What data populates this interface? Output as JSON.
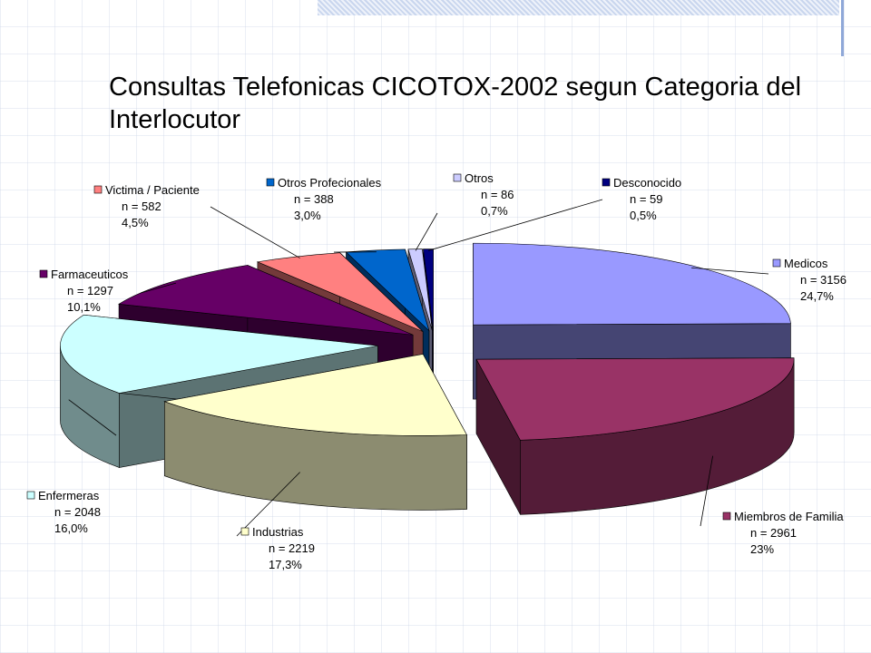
{
  "chart_data": {
    "type": "pie",
    "title": "Consultas Telefonicas CICOTOX-2002 segun Categoria del Interlocutor",
    "slices": [
      {
        "label": "Medicos",
        "n": "n = 3156",
        "pct": "24,7%",
        "value": 24.7,
        "color": "#9999ff"
      },
      {
        "label": "Miembros de Familia",
        "n": "n = 2961",
        "pct": "23%",
        "value": 23.0,
        "color": "#993366"
      },
      {
        "label": "Industrias",
        "n": "n = 2219",
        "pct": "17,3%",
        "value": 17.3,
        "color": "#ffffcc"
      },
      {
        "label": "Enfermeras",
        "n": "n = 2048",
        "pct": "16,0%",
        "value": 16.0,
        "color": "#ccffff"
      },
      {
        "label": "Farmaceuticos",
        "n": "n = 1297",
        "pct": "10,1%",
        "value": 10.1,
        "color": "#660066"
      },
      {
        "label": "Victima / Paciente",
        "n": "n = 582",
        "pct": "4,5%",
        "value": 4.5,
        "color": "#ff8080"
      },
      {
        "label": "Otros Profecionales",
        "n": "n = 388",
        "pct": "3,0%",
        "value": 3.0,
        "color": "#0066cc"
      },
      {
        "label": "Otros",
        "n": "n = 86",
        "pct": "0,7%",
        "value": 0.7,
        "color": "#ccccff"
      },
      {
        "label": "Desconocido",
        "n": "n = 59",
        "pct": "0,5%",
        "value": 0.5,
        "color": "#000080"
      }
    ]
  }
}
